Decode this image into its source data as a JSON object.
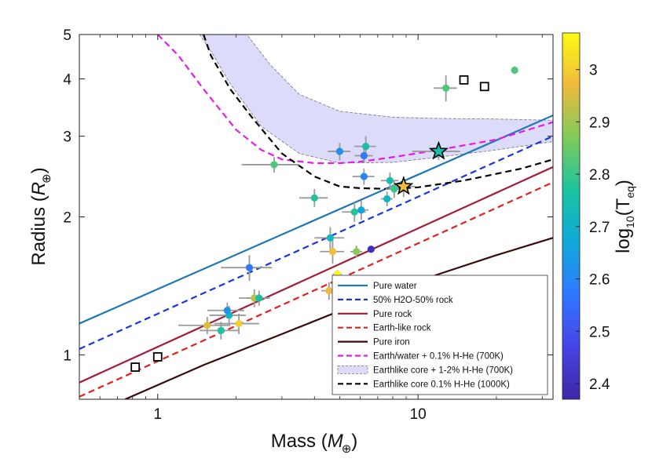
{
  "chart_data": {
    "type": "scatter",
    "x_axis": {
      "label_main": "Mass (",
      "label_sym": "M",
      "label_sub": "⊕",
      "label_close": ")",
      "scale": "log",
      "range": [
        0.5,
        33
      ],
      "ticks": [
        1,
        10
      ],
      "tick_labels": [
        "1",
        "10"
      ]
    },
    "y_axis": {
      "label_main": "Radius (",
      "label_sym": "R",
      "label_sub": "⊕",
      "label_close": ")",
      "scale": "log",
      "range": [
        0.8,
        5
      ],
      "ticks": [
        1,
        2,
        3,
        4,
        5
      ],
      "tick_labels": [
        "1",
        "2",
        "3",
        "4",
        "5"
      ]
    },
    "colorbar": {
      "label_main": "log",
      "label_sub": "10",
      "label_open": "(T",
      "label_sub2": "eq",
      "label_close": ")",
      "range": [
        2.37,
        3.07
      ],
      "ticks": [
        2.4,
        2.5,
        2.6,
        2.7,
        2.8,
        2.9,
        3.0
      ],
      "tick_labels": [
        "2.4",
        "2.5",
        "2.6",
        "2.7",
        "2.8",
        "2.9",
        "3"
      ]
    },
    "curves": [
      {
        "name": "Pure water",
        "color": "#1f77b4",
        "dash": "solid",
        "points": [
          [
            0.5,
            1.17
          ],
          [
            33,
            3.33
          ]
        ]
      },
      {
        "name": "50% H2O-50% rock",
        "color": "#1a35e0",
        "dash": "dashed",
        "points": [
          [
            0.5,
            1.03
          ],
          [
            33,
            3.0
          ]
        ]
      },
      {
        "name": "Pure rock",
        "color": "#a31d35",
        "dash": "solid",
        "points": [
          [
            0.5,
            0.87
          ],
          [
            33,
            2.57
          ]
        ]
      },
      {
        "name": "Earth-like rock",
        "color": "#e32020",
        "dash": "dashed",
        "points": [
          [
            0.5,
            0.81
          ],
          [
            33,
            2.38
          ]
        ]
      },
      {
        "name": "Pure iron",
        "color": "#3a0a0a",
        "dash": "solid",
        "points": [
          [
            0.75,
            0.8
          ],
          [
            1.5,
            0.95
          ],
          [
            3,
            1.11
          ],
          [
            6,
            1.3
          ],
          [
            12,
            1.5
          ],
          [
            20,
            1.65
          ],
          [
            33,
            1.8
          ]
        ]
      },
      {
        "name": "Earth/water + 0.1% H-He (700K)",
        "color": "#e51ce5",
        "dash": "dashed",
        "points": [
          [
            1.0,
            5.0
          ],
          [
            1.2,
            4.5
          ],
          [
            1.5,
            3.8
          ],
          [
            2.0,
            3.1
          ],
          [
            2.5,
            2.8
          ],
          [
            3,
            2.67
          ],
          [
            4,
            2.62
          ],
          [
            5,
            2.62
          ],
          [
            6,
            2.64
          ],
          [
            8,
            2.7
          ],
          [
            12,
            2.8
          ],
          [
            20,
            2.95
          ],
          [
            33,
            3.22
          ]
        ]
      },
      {
        "name": "Earthlike core 0.1% H-He (1000K)",
        "color": "#000000",
        "dash": "dashed",
        "points": [
          [
            1.5,
            5.0
          ],
          [
            1.6,
            4.5
          ],
          [
            1.9,
            3.8
          ],
          [
            2.3,
            3.3
          ],
          [
            3,
            2.75
          ],
          [
            4,
            2.45
          ],
          [
            5,
            2.33
          ],
          [
            6,
            2.31
          ],
          [
            8,
            2.3
          ],
          [
            10,
            2.32
          ],
          [
            15,
            2.4
          ],
          [
            25,
            2.55
          ],
          [
            33,
            2.67
          ]
        ]
      }
    ],
    "band": {
      "name": "Earthlike core + 1-2% H-He (700K)",
      "color": "#dcdcfa",
      "upper": [
        [
          1.6,
          5.0
        ],
        [
          2.2,
          5.0
        ],
        [
          2.7,
          4.3
        ],
        [
          3.5,
          3.7
        ],
        [
          5,
          3.4
        ],
        [
          8,
          3.3
        ],
        [
          12,
          3.28
        ],
        [
          20,
          3.27
        ],
        [
          33,
          3.25
        ]
      ],
      "lower": [
        [
          1.45,
          5.0
        ],
        [
          1.6,
          4.6
        ],
        [
          1.9,
          3.9
        ],
        [
          2.5,
          3.15
        ],
        [
          3.5,
          2.75
        ],
        [
          5,
          2.62
        ],
        [
          8,
          2.63
        ],
        [
          12,
          2.7
        ],
        [
          20,
          2.8
        ],
        [
          33,
          2.92
        ]
      ]
    },
    "points": [
      {
        "mass": 0.82,
        "radius": 0.94,
        "teq": null
      },
      {
        "mass": 1.0,
        "radius": 0.99,
        "teq": null
      },
      {
        "mass": 15.0,
        "radius": 3.98,
        "teq": null
      },
      {
        "mass": 18.0,
        "radius": 3.85,
        "teq": null
      },
      {
        "mass": 1.55,
        "radius": 1.16,
        "teq": 2.95,
        "merr": 0.35,
        "rerr": 0.05
      },
      {
        "mass": 1.75,
        "radius": 1.13,
        "teq": 2.77,
        "merr": 0.3,
        "rerr": 0.05
      },
      {
        "mass": 1.88,
        "radius": 1.22,
        "teq": 2.72,
        "merr": 0.3,
        "rerr": 0.06
      },
      {
        "mass": 1.85,
        "radius": 1.25,
        "teq": 2.62,
        "merr": 0.3,
        "rerr": 0.05
      },
      {
        "mass": 2.05,
        "radius": 1.17,
        "teq": 3.0,
        "merr": 0.4,
        "rerr": 0.06
      },
      {
        "mass": 2.35,
        "radius": 1.33,
        "teq": 2.92,
        "merr": 0.3,
        "rerr": 0.06
      },
      {
        "mass": 2.45,
        "radius": 1.33,
        "teq": 2.75,
        "merr": 0.25,
        "rerr": 0.05
      },
      {
        "mass": 2.25,
        "radius": 1.55,
        "teq": 2.57,
        "merr": 0.5,
        "rerr": 0.1
      },
      {
        "mass": 2.8,
        "radius": 2.6,
        "teq": 2.82,
        "merr": 0.7,
        "rerr": 0.1
      },
      {
        "mass": 4.0,
        "radius": 2.2,
        "teq": 2.78,
        "merr": 0.5,
        "rerr": 0.1
      },
      {
        "mass": 4.6,
        "radius": 1.8,
        "teq": 2.72,
        "merr": 0.6,
        "rerr": 0.1
      },
      {
        "mass": 4.7,
        "radius": 1.68,
        "teq": 2.98,
        "merr": 0.5,
        "rerr": 0.1
      },
      {
        "mass": 4.55,
        "radius": 1.38,
        "teq": 2.97,
        "merr": 0.3,
        "rerr": 0.06
      },
      {
        "mass": 4.9,
        "radius": 1.5,
        "teq": 3.06,
        "merr": 0.2,
        "rerr": 0.03
      },
      {
        "mass": 5.8,
        "radius": 1.68,
        "teq": 2.88,
        "merr": 0.3,
        "rerr": 0.05
      },
      {
        "mass": 6.6,
        "radius": 1.7,
        "teq": 2.4,
        "merr": 0.2,
        "rerr": 0.03
      },
      {
        "mass": 5.7,
        "radius": 2.05,
        "teq": 2.78,
        "merr": 0.6,
        "rerr": 0.1
      },
      {
        "mass": 6.05,
        "radius": 2.07,
        "teq": 2.66,
        "merr": 0.4,
        "rerr": 0.1
      },
      {
        "mass": 7.6,
        "radius": 2.19,
        "teq": 2.72,
        "merr": 0.4,
        "rerr": 0.08
      },
      {
        "mass": 6.2,
        "radius": 2.45,
        "teq": 2.6,
        "merr": 0.6,
        "rerr": 0.1
      },
      {
        "mass": 7.8,
        "radius": 2.4,
        "teq": 2.75,
        "merr": 0.6,
        "rerr": 0.1
      },
      {
        "mass": 8.1,
        "radius": 2.3,
        "teq": 2.8,
        "merr": 0.6,
        "rerr": 0.1
      },
      {
        "mass": 5.0,
        "radius": 2.78,
        "teq": 2.62,
        "merr": 0.5,
        "rerr": 0.12
      },
      {
        "mass": 6.2,
        "radius": 2.72,
        "teq": 2.58,
        "merr": 0.5,
        "rerr": 0.1
      },
      {
        "mass": 6.3,
        "radius": 2.85,
        "teq": 2.75,
        "merr": 0.6,
        "rerr": 0.15
      },
      {
        "mass": 12.8,
        "radius": 3.82,
        "teq": 2.82,
        "merr": 1.3,
        "rerr": 0.25
      },
      {
        "mass": 23.5,
        "radius": 4.18,
        "teq": 2.82,
        "merr": 0.5,
        "rerr": 0.08
      }
    ],
    "stars": [
      {
        "mass": 12.0,
        "radius": 2.78,
        "teq": 2.75,
        "merr": 2.5,
        "rerr": 0.12
      },
      {
        "mass": 8.8,
        "radius": 2.33,
        "teq": 2.98,
        "merr": 1.0,
        "rerr": 0.12
      }
    ],
    "legend": {
      "entries": [
        {
          "label": "Pure water",
          "color": "#1f77b4",
          "kind": "solid"
        },
        {
          "label": "50% H2O-50% rock",
          "color": "#1a35e0",
          "kind": "dashed"
        },
        {
          "label": "Pure rock",
          "color": "#a31d35",
          "kind": "solid"
        },
        {
          "label": "Earth-like rock",
          "color": "#e32020",
          "kind": "dashed"
        },
        {
          "label": "Pure iron",
          "color": "#3a0a0a",
          "kind": "solid"
        },
        {
          "label": "Earth/water + 0.1% H-He (700K)",
          "color": "#e51ce5",
          "kind": "dashed"
        },
        {
          "label": "Earthlike core + 1-2% H-He (700K)",
          "color": "#dcdcfa",
          "kind": "patch"
        },
        {
          "label": "Earthlike core 0.1% H-He (1000K)",
          "color": "#000000",
          "kind": "dashed"
        }
      ]
    }
  }
}
